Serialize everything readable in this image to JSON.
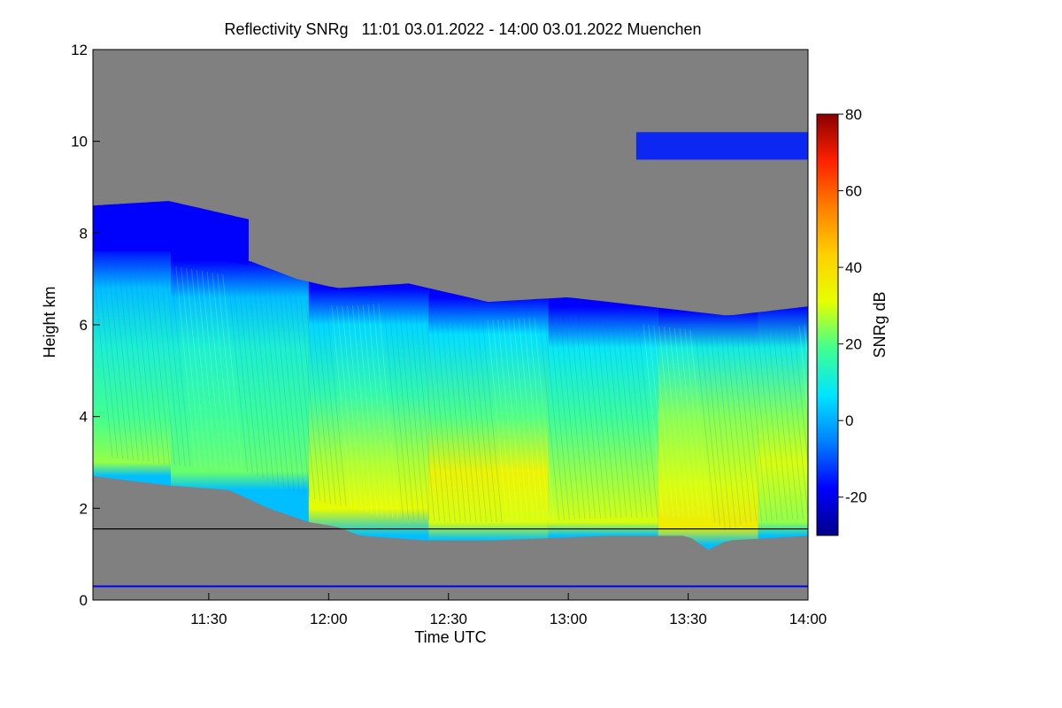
{
  "chart_data": {
    "type": "heatmap",
    "title": "Reflectivity SNRg   11:01 03.01.2022 - 14:00 03.01.2022 Muenchen",
    "xlabel": "Time UTC",
    "ylabel": "Height km",
    "xlim": [
      661,
      840
    ],
    "ylim": [
      0,
      12
    ],
    "x_ticks": [
      {
        "value": 690,
        "label": "11:30"
      },
      {
        "value": 720,
        "label": "12:00"
      },
      {
        "value": 750,
        "label": "12:30"
      },
      {
        "value": 780,
        "label": "13:00"
      },
      {
        "value": 810,
        "label": "13:30"
      },
      {
        "value": 840,
        "label": "14:00"
      }
    ],
    "y_ticks": [
      {
        "value": 0,
        "label": "0"
      },
      {
        "value": 2,
        "label": "2"
      },
      {
        "value": 4,
        "label": "4"
      },
      {
        "value": 6,
        "label": "6"
      },
      {
        "value": 8,
        "label": "8"
      },
      {
        "value": 10,
        "label": "10"
      },
      {
        "value": 12,
        "label": "12"
      }
    ],
    "colorbar": {
      "label": "SNRg dB",
      "range": [
        -30,
        80
      ],
      "ticks": [
        {
          "value": -20,
          "label": "-20"
        },
        {
          "value": 0,
          "label": "0"
        },
        {
          "value": 20,
          "label": "20"
        },
        {
          "value": 40,
          "label": "40"
        },
        {
          "value": 60,
          "label": "60"
        },
        {
          "value": 80,
          "label": "80"
        }
      ],
      "colors": [
        "#00008b",
        "#0000ff",
        "#0080ff",
        "#00e5ff",
        "#40ff90",
        "#e6ff00",
        "#ffd000",
        "#ff8000",
        "#ff2000",
        "#8b0000"
      ]
    },
    "no_data_color": "#808080",
    "reference_lines_km": [
      1.55,
      0.3
    ],
    "echo_top_km": [
      [
        661,
        7.7
      ],
      [
        680,
        7.7
      ],
      [
        700,
        7.4
      ],
      [
        712,
        7.0
      ],
      [
        722,
        6.8
      ],
      [
        740,
        6.9
      ],
      [
        760,
        6.5
      ],
      [
        780,
        6.6
      ],
      [
        800,
        6.4
      ],
      [
        820,
        6.2
      ],
      [
        840,
        6.4
      ]
    ],
    "echo_base_km": [
      [
        661,
        2.7
      ],
      [
        680,
        2.5
      ],
      [
        695,
        2.4
      ],
      [
        705,
        2.0
      ],
      [
        715,
        1.7
      ],
      [
        722,
        1.6
      ],
      [
        728,
        1.4
      ],
      [
        745,
        1.3
      ],
      [
        760,
        1.3
      ],
      [
        790,
        1.4
      ],
      [
        810,
        1.4
      ],
      [
        815,
        1.1
      ],
      [
        820,
        1.3
      ],
      [
        840,
        1.4
      ]
    ],
    "intensity_dB": [
      [
        661,
        [
          [
            2.7,
            2.0
          ],
          [
            3.0,
            25.0
          ],
          [
            4.0,
            19.0
          ],
          [
            5.5,
            12.0
          ],
          [
            6.8,
            2.0
          ],
          [
            7.7,
            -18.0
          ]
        ]
      ],
      [
        700,
        [
          [
            2.4,
            2.0
          ],
          [
            2.8,
            22.0
          ],
          [
            4.0,
            18.0
          ],
          [
            5.5,
            12.0
          ],
          [
            6.6,
            2.0
          ],
          [
            7.4,
            -18.0
          ]
        ]
      ],
      [
        730,
        [
          [
            1.4,
            2.0
          ],
          [
            2.0,
            32.0
          ],
          [
            3.0,
            27.0
          ],
          [
            4.5,
            16.0
          ],
          [
            6.0,
            5.0
          ],
          [
            6.8,
            -18.0
          ]
        ]
      ],
      [
        760,
        [
          [
            1.3,
            2.0
          ],
          [
            1.7,
            30.0
          ],
          [
            2.8,
            34.0
          ],
          [
            4.0,
            20.0
          ],
          [
            5.8,
            6.0
          ],
          [
            6.6,
            -18.0
          ]
        ]
      ],
      [
        790,
        [
          [
            1.4,
            2.0
          ],
          [
            1.7,
            30.0
          ],
          [
            2.8,
            25.0
          ],
          [
            4.0,
            18.0
          ],
          [
            5.5,
            8.0
          ],
          [
            6.4,
            -18.0
          ]
        ]
      ],
      [
        815,
        [
          [
            1.2,
            2.0
          ],
          [
            1.6,
            36.0
          ],
          [
            2.5,
            30.0
          ],
          [
            4.0,
            24.0
          ],
          [
            5.5,
            10.0
          ],
          [
            6.3,
            -18.0
          ]
        ]
      ],
      [
        840,
        [
          [
            1.4,
            2.0
          ],
          [
            1.7,
            25.0
          ],
          [
            3.0,
            30.0
          ],
          [
            4.0,
            24.0
          ],
          [
            5.5,
            10.0
          ],
          [
            6.4,
            -18.0
          ]
        ]
      ]
    ],
    "upper_cloud_km": {
      "start": 661,
      "end": 700,
      "top_km": [
        [
          661,
          8.6
        ],
        [
          680,
          8.7
        ],
        [
          700,
          8.3
        ]
      ]
    },
    "cirrus_patch_km": {
      "start": 797,
      "end": 840,
      "base_km": 9.6,
      "top_km": 10.2
    }
  }
}
